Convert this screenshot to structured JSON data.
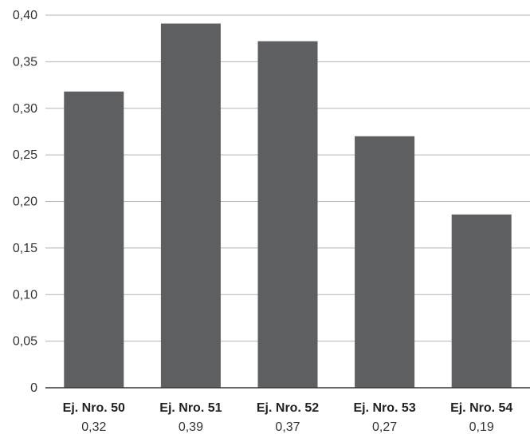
{
  "colors": {
    "bar": "#5e5f61",
    "grid": "#b3b3b3",
    "axis": "#333333",
    "text": "#333333"
  },
  "chart_data": {
    "type": "bar",
    "categories": [
      "Ej. Nro. 50",
      "Ej. Nro. 51",
      "Ej. Nro. 52",
      "Ej. Nro. 53",
      "Ej. Nro. 54"
    ],
    "values": [
      0.318,
      0.391,
      0.372,
      0.27,
      0.186
    ],
    "value_labels": [
      "0,32",
      "0,39",
      "0,37",
      "0,27",
      "0,19"
    ],
    "y_ticks": [
      0,
      0.05,
      0.1,
      0.15,
      0.2,
      0.25,
      0.3,
      0.35,
      0.4
    ],
    "y_tick_labels": [
      "0",
      "0,05",
      "0,10",
      "0,15",
      "0,20",
      "0,25",
      "0,30",
      "0,35",
      "0,40"
    ],
    "ylim": [
      0,
      0.4
    ],
    "grid": true,
    "legend": "none",
    "title": "",
    "xlabel": "",
    "ylabel": ""
  }
}
